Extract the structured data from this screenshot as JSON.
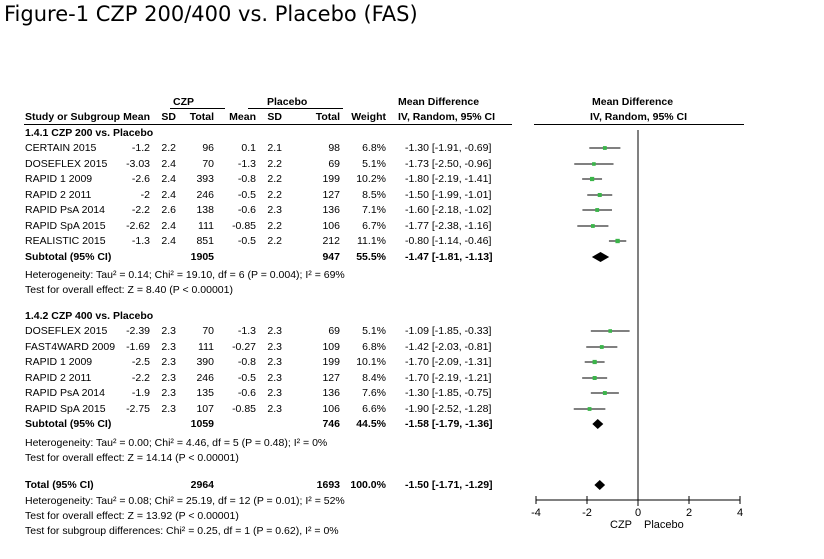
{
  "figure_title": "Figure-1 CZP 200/400 vs. Placebo  (FAS)",
  "header": {
    "group_czp": "CZP",
    "group_placebo": "Placebo",
    "md_title": "Mean Difference",
    "study": "Study or Subgroup",
    "mean": "Mean",
    "sd": "SD",
    "total": "Total",
    "weight": "Weight",
    "method": "IV, Random, 95% CI",
    "plot_title": "Mean Difference",
    "plot_method": "IV, Random, 95% CI"
  },
  "chart_data": {
    "type": "forest",
    "xlim": [
      -4,
      4
    ],
    "xticks": [
      "-4",
      "-2",
      "0",
      "2",
      "4"
    ],
    "xlabel_left": "CZP",
    "xlabel_right": "Placebo",
    "groups": [
      {
        "title": "1.4.1 CZP 200 vs. Placebo",
        "studies": [
          {
            "name": "CERTAIN 2015",
            "czp_mean": "-1.2",
            "czp_sd": "2.2",
            "czp_n": "96",
            "pbo_mean": "0.1",
            "pbo_sd": "2.1",
            "pbo_n": "98",
            "weight": "6.8%",
            "ci_text": "-1.30 [-1.91, -0.69]",
            "md": -1.3,
            "lo": -1.91,
            "hi": -0.69
          },
          {
            "name": "DOSEFLEX 2015",
            "czp_mean": "-3.03",
            "czp_sd": "2.4",
            "czp_n": "70",
            "pbo_mean": "-1.3",
            "pbo_sd": "2.2",
            "pbo_n": "69",
            "weight": "5.1%",
            "ci_text": "-1.73 [-2.50, -0.96]",
            "md": -1.73,
            "lo": -2.5,
            "hi": -0.96
          },
          {
            "name": "RAPID 1 2009",
            "czp_mean": "-2.6",
            "czp_sd": "2.4",
            "czp_n": "393",
            "pbo_mean": "-0.8",
            "pbo_sd": "2.2",
            "pbo_n": "199",
            "weight": "10.2%",
            "ci_text": "-1.80 [-2.19, -1.41]",
            "md": -1.8,
            "lo": -2.19,
            "hi": -1.41
          },
          {
            "name": "RAPID 2 2011",
            "czp_mean": "-2",
            "czp_sd": "2.4",
            "czp_n": "246",
            "pbo_mean": "-0.5",
            "pbo_sd": "2.2",
            "pbo_n": "127",
            "weight": "8.5%",
            "ci_text": "-1.50 [-1.99, -1.01]",
            "md": -1.5,
            "lo": -1.99,
            "hi": -1.01
          },
          {
            "name": "RAPID PsA 2014",
            "czp_mean": "-2.2",
            "czp_sd": "2.6",
            "czp_n": "138",
            "pbo_mean": "-0.6",
            "pbo_sd": "2.3",
            "pbo_n": "136",
            "weight": "7.1%",
            "ci_text": "-1.60 [-2.18, -1.02]",
            "md": -1.6,
            "lo": -2.18,
            "hi": -1.02
          },
          {
            "name": "RAPID SpA 2015",
            "czp_mean": "-2.62",
            "czp_sd": "2.4",
            "czp_n": "111",
            "pbo_mean": "-0.85",
            "pbo_sd": "2.2",
            "pbo_n": "106",
            "weight": "6.7%",
            "ci_text": "-1.77 [-2.38, -1.16]",
            "md": -1.77,
            "lo": -2.38,
            "hi": -1.16
          },
          {
            "name": "REALISTIC 2015",
            "czp_mean": "-1.3",
            "czp_sd": "2.4",
            "czp_n": "851",
            "pbo_mean": "-0.5",
            "pbo_sd": "2.2",
            "pbo_n": "212",
            "weight": "11.1%",
            "ci_text": "-0.80 [-1.14, -0.46]",
            "md": -0.8,
            "lo": -1.14,
            "hi": -0.46
          }
        ],
        "subtotal": {
          "label": "Subtotal (95% CI)",
          "czp_n": "1905",
          "pbo_n": "947",
          "weight": "55.5%",
          "ci_text": "-1.47 [-1.81, -1.13]",
          "md": -1.47,
          "lo": -1.81,
          "hi": -1.13
        },
        "heterogeneity": "Heterogeneity: Tau² = 0.14; Chi² = 19.10, df = 6 (P = 0.004); I² = 69%",
        "overall_effect": "Test for overall effect: Z = 8.40 (P < 0.00001)"
      },
      {
        "title": "1.4.2 CZP 400 vs. Placebo",
        "studies": [
          {
            "name": "DOSEFLEX 2015",
            "czp_mean": "-2.39",
            "czp_sd": "2.3",
            "czp_n": "70",
            "pbo_mean": "-1.3",
            "pbo_sd": "2.3",
            "pbo_n": "69",
            "weight": "5.1%",
            "ci_text": "-1.09 [-1.85, -0.33]",
            "md": -1.09,
            "lo": -1.85,
            "hi": -0.33
          },
          {
            "name": "FAST4WARD 2009",
            "czp_mean": "-1.69",
            "czp_sd": "2.3",
            "czp_n": "111",
            "pbo_mean": "-0.27",
            "pbo_sd": "2.3",
            "pbo_n": "109",
            "weight": "6.8%",
            "ci_text": "-1.42 [-2.03, -0.81]",
            "md": -1.42,
            "lo": -2.03,
            "hi": -0.81
          },
          {
            "name": "RAPID 1 2009",
            "czp_mean": "-2.5",
            "czp_sd": "2.3",
            "czp_n": "390",
            "pbo_mean": "-0.8",
            "pbo_sd": "2.3",
            "pbo_n": "199",
            "weight": "10.1%",
            "ci_text": "-1.70 [-2.09, -1.31]",
            "md": -1.7,
            "lo": -2.09,
            "hi": -1.31
          },
          {
            "name": "RAPID 2 2011",
            "czp_mean": "-2.2",
            "czp_sd": "2.3",
            "czp_n": "246",
            "pbo_mean": "-0.5",
            "pbo_sd": "2.3",
            "pbo_n": "127",
            "weight": "8.4%",
            "ci_text": "-1.70 [-2.19, -1.21]",
            "md": -1.7,
            "lo": -2.19,
            "hi": -1.21
          },
          {
            "name": "RAPID PsA 2014",
            "czp_mean": "-1.9",
            "czp_sd": "2.3",
            "czp_n": "135",
            "pbo_mean": "-0.6",
            "pbo_sd": "2.3",
            "pbo_n": "136",
            "weight": "7.6%",
            "ci_text": "-1.30 [-1.85, -0.75]",
            "md": -1.3,
            "lo": -1.85,
            "hi": -0.75
          },
          {
            "name": "RAPID SpA 2015",
            "czp_mean": "-2.75",
            "czp_sd": "2.3",
            "czp_n": "107",
            "pbo_mean": "-0.85",
            "pbo_sd": "2.3",
            "pbo_n": "106",
            "weight": "6.6%",
            "ci_text": "-1.90 [-2.52, -1.28]",
            "md": -1.9,
            "lo": -2.52,
            "hi": -1.28
          }
        ],
        "subtotal": {
          "label": "Subtotal (95% CI)",
          "czp_n": "1059",
          "pbo_n": "746",
          "weight": "44.5%",
          "ci_text": "-1.58 [-1.79, -1.36]",
          "md": -1.58,
          "lo": -1.79,
          "hi": -1.36
        },
        "heterogeneity": "Heterogeneity: Tau² = 0.00; Chi² = 4.46, df = 5 (P = 0.48); I² = 0%",
        "overall_effect": "Test for overall effect: Z = 14.14 (P < 0.00001)"
      }
    ],
    "total": {
      "label": "Total (95% CI)",
      "czp_n": "2964",
      "pbo_n": "1693",
      "weight": "100.0%",
      "ci_text": "-1.50 [-1.71, -1.29]",
      "md": -1.5,
      "lo": -1.71,
      "hi": -1.29
    },
    "total_heterogeneity": "Heterogeneity: Tau² = 0.08; Chi² = 25.19, df = 12 (P = 0.01); I² = 52%",
    "total_effect": "Test for overall effect: Z = 13.92 (P < 0.00001)",
    "subgroup_test": "Test for subgroup differences: Chi² = 0.25, df = 1 (P = 0.62), I² = 0%",
    "marker_color": "#3bb54a"
  }
}
